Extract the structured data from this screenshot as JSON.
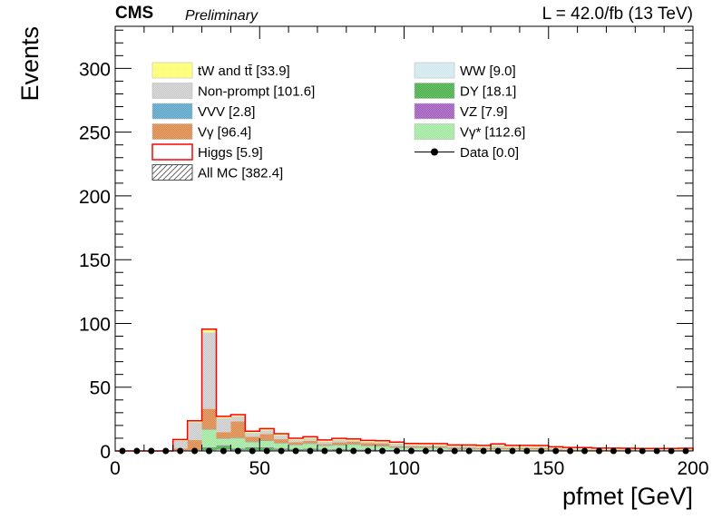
{
  "header": {
    "experiment": "CMS",
    "status": "Preliminary",
    "luminosity": "L = 42.0/fb (13 TeV)"
  },
  "chart_data": {
    "type": "bar",
    "title": "",
    "xlabel": "pfmet [GeV]",
    "ylabel": "Events",
    "xlim": [
      0,
      200
    ],
    "ylim": [
      0,
      333
    ],
    "x_ticks": [
      "0",
      "50",
      "100",
      "150",
      "200"
    ],
    "y_ticks": [
      "0",
      "50",
      "100",
      "150",
      "200",
      "250",
      "300"
    ],
    "bin_width": 5,
    "grid": false,
    "legend_placement": "top",
    "legend": [
      {
        "key": "tw",
        "label": "tW and tt̄ [33.9]",
        "color": "#ffff66"
      },
      {
        "key": "ww",
        "label": "WW [9.0]",
        "color": "#cce8ee"
      },
      {
        "key": "nonprompt",
        "label": "Non-prompt [101.6]",
        "color": "#c8c8c8"
      },
      {
        "key": "dy",
        "label": "DY [18.1]",
        "color": "#3aa83a"
      },
      {
        "key": "vvv",
        "label": "VVV [2.8]",
        "color": "#4f9ec4"
      },
      {
        "key": "vz",
        "label": "VZ [7.9]",
        "color": "#9a4fb8"
      },
      {
        "key": "vg",
        "label": "Vγ [96.4]",
        "color": "#d9803a"
      },
      {
        "key": "vgs",
        "label": "Vγ* [112.6]",
        "color": "#99e699"
      },
      {
        "key": "higgs",
        "label": "Higgs [5.9]",
        "color": "#ff0000"
      },
      {
        "key": "data",
        "label": "Data [0.0]",
        "color": "#000000"
      },
      {
        "key": "allmc",
        "label": "All MC [382.4]",
        "color": "#555555"
      }
    ],
    "stack_order": [
      "ww",
      "dy",
      "vz",
      "vgs",
      "vvv",
      "vg",
      "nonprompt",
      "tw"
    ],
    "series": [
      {
        "name": "WW",
        "key": "ww",
        "values": [
          0,
          0,
          0,
          0,
          0,
          0,
          0.5,
          1,
          0.5,
          0.5,
          0.5,
          0.5,
          0.3,
          0.5,
          0.5,
          0.3,
          0.3,
          0.3,
          0.3,
          0.2,
          0.2,
          0.2,
          0.2,
          0.2,
          0.2,
          0.1,
          0.2,
          0.1,
          0.1,
          0.1,
          0.1,
          0.1,
          0.1,
          0.1,
          0.1,
          0,
          0,
          0,
          0,
          0.1
        ]
      },
      {
        "name": "DY",
        "key": "dy",
        "values": [
          0,
          0,
          0,
          0,
          0,
          0,
          2,
          3,
          1,
          2,
          2,
          1,
          1,
          1,
          0.5,
          1,
          0.5,
          0.5,
          0.3,
          0.3,
          0.3,
          0.2,
          0.2,
          0.2,
          0.2,
          0.1,
          0.1,
          0.1,
          0.1,
          0,
          0,
          0,
          0,
          0,
          0,
          0,
          0,
          0,
          0,
          0
        ]
      },
      {
        "name": "VZ",
        "key": "vz",
        "values": [
          0,
          0,
          0,
          0,
          0,
          0,
          0.3,
          0.5,
          0.5,
          0.5,
          0.5,
          0.5,
          0.3,
          0.3,
          0.3,
          0.3,
          0.3,
          0.2,
          0.2,
          0.2,
          0.2,
          0.2,
          0.2,
          0.1,
          0.1,
          0.1,
          0.1,
          0.1,
          0.1,
          0.1,
          0.1,
          0.1,
          0.1,
          0.1,
          0.1,
          0.1,
          0,
          0,
          0,
          0
        ]
      },
      {
        "name": "Vγ*",
        "key": "vgs",
        "values": [
          0,
          0,
          0,
          0,
          0,
          0.5,
          14,
          5,
          8,
          4,
          5,
          4,
          3,
          4,
          3,
          3,
          4,
          3,
          3,
          2,
          2,
          2,
          2,
          1,
          1,
          1,
          1,
          1,
          1,
          1,
          0,
          0,
          0,
          0,
          0,
          0,
          0,
          0,
          0,
          0
        ]
      },
      {
        "name": "VVV",
        "key": "vvv",
        "values": [
          0,
          0,
          0,
          0,
          0,
          0,
          0.2,
          0.3,
          0.2,
          0.2,
          0.2,
          0.2,
          0.2,
          0.1,
          0.1,
          0.1,
          0.1,
          0.1,
          0.1,
          0.1,
          0.1,
          0.1,
          0.1,
          0.1,
          0.1,
          0,
          0,
          0,
          0,
          0,
          0,
          0,
          0,
          0,
          0,
          0,
          0,
          0,
          0,
          0
        ]
      },
      {
        "name": "Vγ",
        "key": "vg",
        "values": [
          0,
          0,
          0,
          0,
          2,
          8,
          16,
          5,
          13,
          4,
          5,
          3,
          2,
          2,
          1,
          2,
          2,
          2,
          2,
          1,
          1,
          1,
          1,
          1,
          1,
          1,
          1,
          1,
          1,
          1,
          1,
          0.5,
          0.5,
          0.5,
          0.5,
          0.5,
          0.5,
          0.5,
          0.5,
          0.5
        ]
      },
      {
        "name": "Non-prompt",
        "key": "nonprompt",
        "values": [
          0,
          0,
          0,
          0,
          6,
          14,
          60,
          11,
          4,
          3,
          3,
          3,
          2,
          2,
          2,
          2,
          1,
          1,
          1,
          2,
          1,
          1,
          1,
          1,
          1,
          1,
          2,
          1,
          1,
          1,
          1,
          1,
          1,
          0.5,
          0.5,
          0.5,
          0.5,
          0.5,
          0.5,
          0.5
        ]
      },
      {
        "name": "tW and tt̄",
        "key": "tw",
        "values": [
          0,
          0,
          0,
          0,
          1,
          1,
          2,
          1,
          1,
          1,
          1,
          1,
          1,
          1,
          1,
          1,
          1,
          1,
          1,
          1,
          1,
          1,
          1,
          1,
          1,
          1,
          1,
          1,
          1,
          1,
          1,
          1,
          1,
          1,
          1,
          1,
          1,
          1,
          1,
          1
        ]
      },
      {
        "name": "Higgs",
        "key": "higgs",
        "values": [
          0,
          0,
          0,
          0,
          0,
          0.2,
          0.5,
          0.3,
          0.3,
          0.3,
          0.3,
          0.3,
          0.2,
          0.2,
          0.2,
          0.2,
          0.2,
          0.2,
          0.1,
          0.1,
          0.1,
          0.1,
          0.1,
          0.1,
          0.1,
          0.1,
          0.1,
          0.1,
          0.1,
          0.1,
          0.1,
          0.1,
          0,
          0,
          0,
          0,
          0,
          0,
          0,
          0
        ]
      },
      {
        "name": "Data",
        "key": "data",
        "values": [
          0,
          0,
          0,
          0,
          0,
          0,
          0,
          0,
          0,
          0,
          0,
          0,
          0,
          0,
          0,
          0,
          0,
          0,
          0,
          0,
          0,
          0,
          0,
          0,
          0,
          0,
          0,
          0,
          0,
          0,
          0,
          0,
          0,
          0,
          0,
          0,
          0,
          0,
          0,
          0
        ]
      }
    ]
  }
}
